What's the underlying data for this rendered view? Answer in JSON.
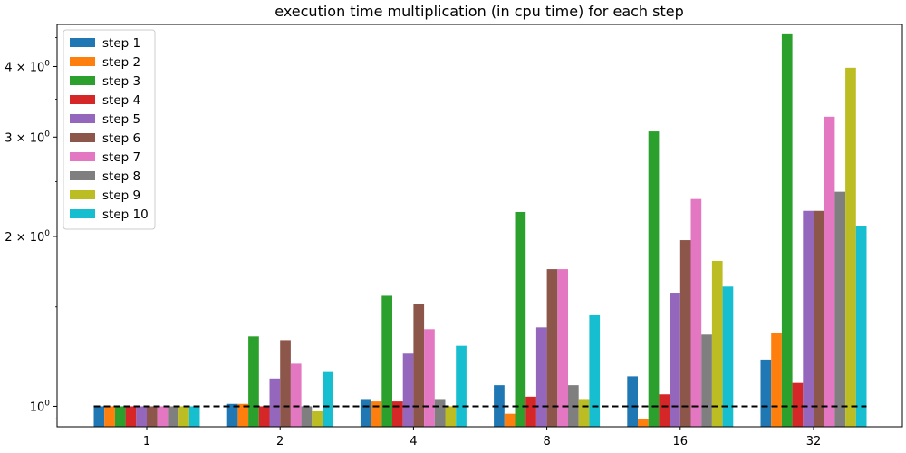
{
  "chart_data": {
    "type": "bar",
    "title": "execution time multiplication (in cpu time) for each step",
    "xlabel": "",
    "ylabel": "",
    "yscale": "log",
    "ylim": [
      0.92,
      4.75
    ],
    "categories": [
      "1",
      "2",
      "4",
      "8",
      "16",
      "32"
    ],
    "series": [
      {
        "name": "step 1",
        "color": "#1f77b4",
        "values": [
          1.0,
          1.01,
          1.03,
          1.09,
          1.13,
          1.21
        ]
      },
      {
        "name": "step 2",
        "color": "#ff7f0e",
        "values": [
          1.0,
          1.01,
          1.02,
          0.97,
          0.95,
          1.35
        ]
      },
      {
        "name": "step 3",
        "color": "#2ca02c",
        "values": [
          1.0,
          1.33,
          1.57,
          2.21,
          3.07,
          4.58
        ]
      },
      {
        "name": "step 4",
        "color": "#d62728",
        "values": [
          1.0,
          1.0,
          1.02,
          1.04,
          1.05,
          1.1
        ]
      },
      {
        "name": "step 5",
        "color": "#9467bd",
        "values": [
          1.0,
          1.12,
          1.24,
          1.38,
          1.59,
          2.22
        ]
      },
      {
        "name": "step 6",
        "color": "#8c564b",
        "values": [
          1.0,
          1.31,
          1.52,
          1.75,
          1.97,
          2.22
        ]
      },
      {
        "name": "step 7",
        "color": "#e377c2",
        "values": [
          1.0,
          1.19,
          1.37,
          1.75,
          2.33,
          3.26
        ]
      },
      {
        "name": "step 8",
        "color": "#7f7f7f",
        "values": [
          1.0,
          1.0,
          1.03,
          1.09,
          1.34,
          2.4
        ]
      },
      {
        "name": "step 9",
        "color": "#bcbd22",
        "values": [
          1.0,
          0.98,
          1.0,
          1.03,
          1.81,
          3.98
        ]
      },
      {
        "name": "step 10",
        "color": "#17becf",
        "values": [
          1.0,
          1.15,
          1.28,
          1.45,
          1.63,
          2.09
        ]
      }
    ],
    "reference_line": {
      "y": 1.0,
      "style": "dashed",
      "color": "#000000"
    },
    "yticks": [
      {
        "value": 1,
        "base": "10",
        "exp": "0"
      },
      {
        "value": 2,
        "base": "2 × 10",
        "exp": "0"
      },
      {
        "value": 3,
        "base": "3 × 10",
        "exp": "0"
      },
      {
        "value": 4,
        "base": "4 × 10",
        "exp": "0"
      }
    ],
    "legend_position": "upper-left",
    "grid": false
  }
}
